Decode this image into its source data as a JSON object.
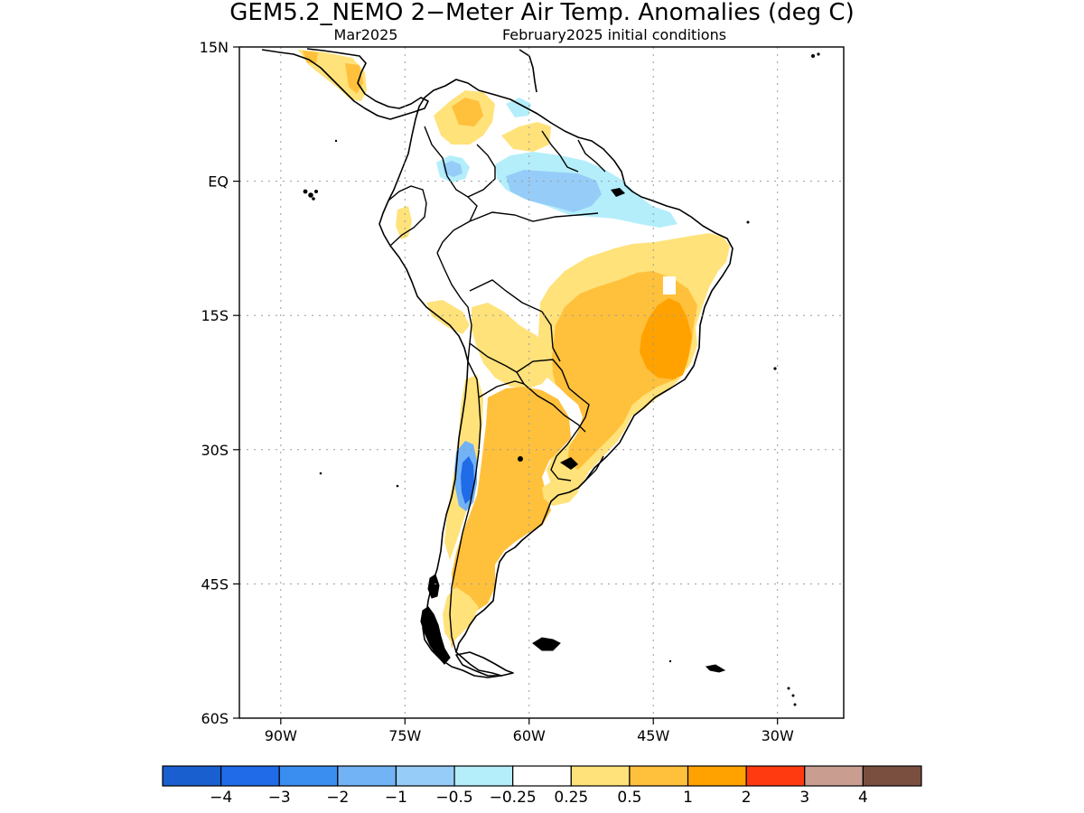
{
  "figure": {
    "title": "GEM5.2_NEMO 2−Meter Air Temp. Anomalies (deg C)",
    "valid_month": "Mar2025",
    "initial_conditions": "February2025 initial conditions"
  },
  "chart_data": {
    "type": "heatmap",
    "title": "GEM5.2_NEMO 2−Meter Air Temp. Anomalies (deg C)",
    "subtitle_left": "Mar2025",
    "subtitle_right": "February2025 initial conditions",
    "xlim": [
      -95,
      -22
    ],
    "ylim": [
      -60,
      15
    ],
    "grid": true,
    "x_ticks": [
      {
        "value": -90,
        "label": "90W"
      },
      {
        "value": -75,
        "label": "75W"
      },
      {
        "value": -60,
        "label": "60W"
      },
      {
        "value": -45,
        "label": "45W"
      },
      {
        "value": -30,
        "label": "30W"
      }
    ],
    "y_ticks": [
      {
        "value": 15,
        "label": "15N"
      },
      {
        "value": 0,
        "label": "EQ"
      },
      {
        "value": -15,
        "label": "15S"
      },
      {
        "value": -30,
        "label": "30S"
      },
      {
        "value": -45,
        "label": "45S"
      },
      {
        "value": -60,
        "label": "60S"
      }
    ],
    "colorbar": {
      "boundaries": [
        "−4",
        "−3",
        "−2",
        "−1",
        "−0.5",
        "−0.25",
        "0.25",
        "0.5",
        "1",
        "2",
        "3",
        "4"
      ],
      "colors": [
        "#1a5fd0",
        "#1f6be8",
        "#3a8ef0",
        "#72b3f6",
        "#96cdf8",
        "#b4eefa",
        "#ffffff",
        "#ffe27a",
        "#ffc03c",
        "#ffa200",
        "#ff3a10",
        "#c99e91",
        "#7a4f40"
      ]
    },
    "anomaly_regions": [
      {
        "id": "northeast-brazil",
        "anomaly_class": "0.25 to 0.5",
        "approx_lon": [
          -58,
          -40
        ],
        "approx_lat": [
          -25,
          -5
        ]
      },
      {
        "id": "central-brazil",
        "anomaly_class": "0.5 to 1",
        "approx_lon": [
          -56,
          -40
        ],
        "approx_lat": [
          -28,
          -10
        ]
      },
      {
        "id": "east-brazil",
        "anomaly_class": "1 to 2",
        "approx_lon": [
          -45,
          -41
        ],
        "approx_lat": [
          -20,
          -12
        ]
      },
      {
        "id": "argentina",
        "anomaly_class": "0.5 to 1",
        "approx_lon": [
          -70,
          -53
        ],
        "approx_lat": [
          -42,
          -23
        ]
      },
      {
        "id": "patagonia",
        "anomaly_class": "0.5 to 1",
        "approx_lon": [
          -72,
          -64
        ],
        "approx_lat": [
          -53,
          -42
        ]
      },
      {
        "id": "andes-central-chile",
        "anomaly_class": "−2 to −1",
        "approx_lon": [
          -71,
          -69
        ],
        "approx_lat": [
          -36,
          -28
        ]
      },
      {
        "id": "northern-amazon",
        "anomaly_class": "−1 to −0.5",
        "approx_lon": [
          -65,
          -56
        ],
        "approx_lat": [
          -3,
          3
        ]
      },
      {
        "id": "venezuela-colombia",
        "anomaly_class": "0.25 to 1",
        "approx_lon": [
          -75,
          -63
        ],
        "approx_lat": [
          4,
          12
        ]
      },
      {
        "id": "central-america",
        "anomaly_class": "0.25 to 2",
        "approx_lon": [
          -90,
          -83
        ],
        "approx_lat": [
          9,
          15
        ]
      }
    ]
  }
}
